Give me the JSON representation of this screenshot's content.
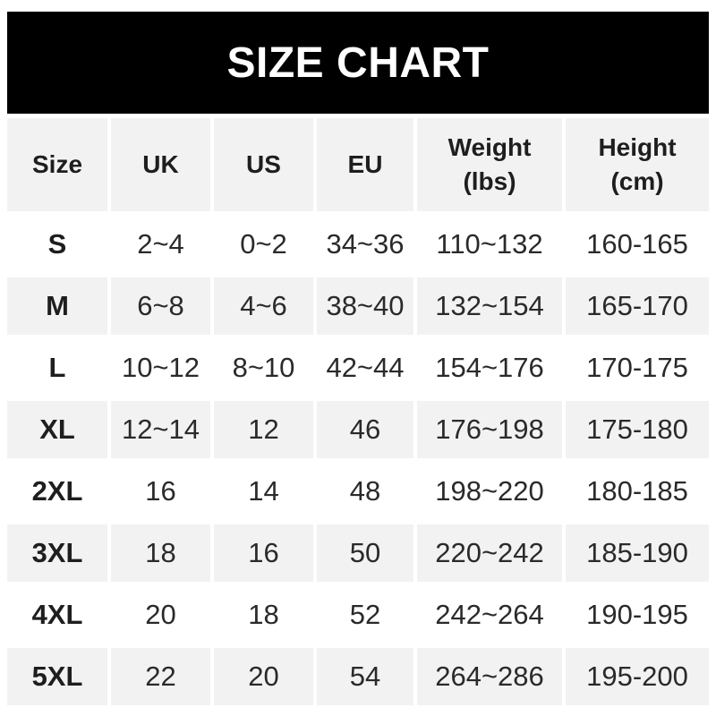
{
  "chart_data": {
    "type": "table",
    "title": "SIZE CHART",
    "columns": [
      {
        "label": "Size",
        "sub": ""
      },
      {
        "label": "UK",
        "sub": ""
      },
      {
        "label": "US",
        "sub": ""
      },
      {
        "label": "EU",
        "sub": ""
      },
      {
        "label": "Weight",
        "sub": "(lbs)"
      },
      {
        "label": "Height",
        "sub": "(cm)"
      }
    ],
    "rows": [
      [
        "S",
        "2~4",
        "0~2",
        "34~36",
        "110~132",
        "160-165"
      ],
      [
        "M",
        "6~8",
        "4~6",
        "38~40",
        "132~154",
        "165-170"
      ],
      [
        "L",
        "10~12",
        "8~10",
        "42~44",
        "154~176",
        "170-175"
      ],
      [
        "XL",
        "12~14",
        "12",
        "46",
        "176~198",
        "175-180"
      ],
      [
        "2XL",
        "16",
        "14",
        "48",
        "198~220",
        "180-185"
      ],
      [
        "3XL",
        "18",
        "16",
        "50",
        "220~242",
        "185-190"
      ],
      [
        "4XL",
        "20",
        "18",
        "52",
        "242~264",
        "190-195"
      ],
      [
        "5XL",
        "22",
        "20",
        "54",
        "264~286",
        "195-200"
      ]
    ],
    "layout": {
      "stripe_rows": [
        "header",
        "M",
        "XL",
        "3XL",
        "5XL"
      ],
      "grid": "off",
      "legend": "none"
    }
  },
  "colors": {
    "banner_bg": "#000000",
    "banner_text": "#ffffff",
    "stripe": "#f2f2f2",
    "row_white": "#ffffff",
    "text_dark": "#1e1e1e",
    "text_data": "#2a2a2a"
  }
}
